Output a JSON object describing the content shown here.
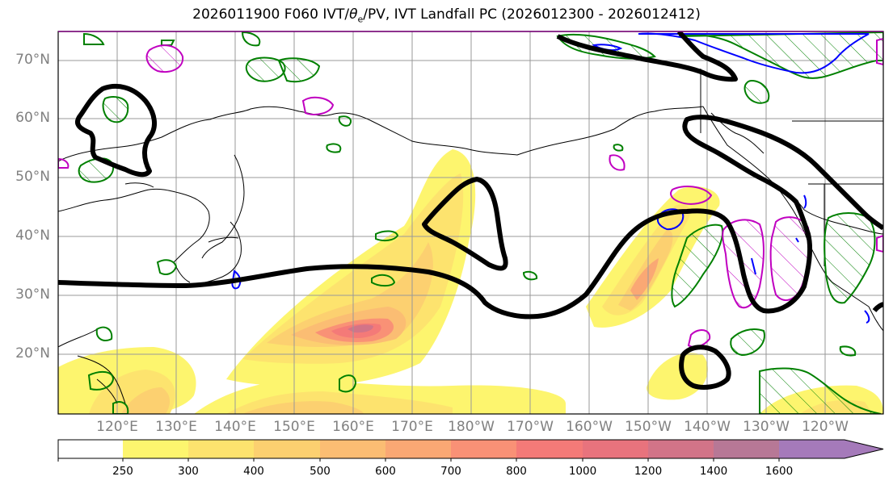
{
  "title": "2026011900 F060 IVT/θe/PV, IVT Landfall PC (2026012300 - 2026012412)",
  "title_parts": {
    "prefix": "2026011900 F060 IVT/",
    "theta": "θ",
    "theta_sub": "e",
    "suffix": "/PV, IVT Landfall PC (2026012300 - 2026012412)"
  },
  "lat_labels": [
    "70°N",
    "60°N",
    "50°N",
    "40°N",
    "30°N",
    "20°N"
  ],
  "lon_labels": [
    "120°E",
    "130°E",
    "140°E",
    "150°E",
    "160°E",
    "170°E",
    "180°W",
    "170°W",
    "160°W",
    "150°W",
    "140°W",
    "130°W",
    "120°W"
  ],
  "colorbar": {
    "ticks": [
      "250",
      "300",
      "400",
      "500",
      "600",
      "700",
      "800",
      "1000",
      "1200",
      "1400",
      "1600"
    ],
    "colors": [
      "#ffffff",
      "#fdf56e",
      "#fde36e",
      "#fcd070",
      "#fbbd73",
      "#faa874",
      "#f99176",
      "#f47a78",
      "#e8737d",
      "#d27488",
      "#b77896",
      "#a57aba"
    ]
  },
  "colors": {
    "ivt_contour": "#000000",
    "theta_e": "#008000",
    "pv_magenta": "#c000c0",
    "pv_blue": "#0000ff",
    "coast": "#000000",
    "grid": "#999999",
    "axis_label": "#808080"
  },
  "legend_icons": [
    "ivt-shading",
    "theta-e-contour-green",
    "pv-contour-magenta",
    "pv-contour-blue",
    "ivt-landfall-pc-black"
  ]
}
